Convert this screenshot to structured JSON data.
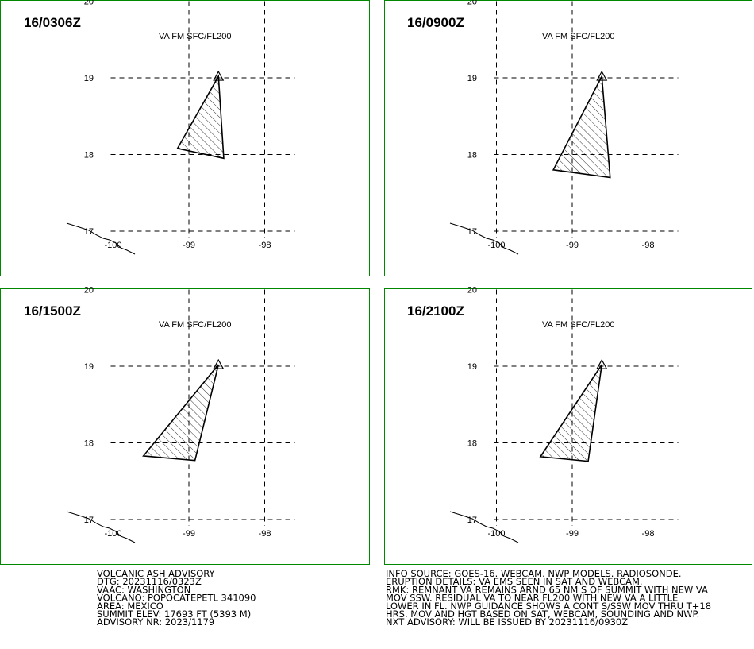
{
  "panels": [
    {
      "time": "16/0306Z",
      "level": "VA FM SFC/FL200",
      "lon": [
        -98.61,
        -99.15,
        -98.54
      ],
      "lat": [
        19.02,
        18.08,
        17.95
      ]
    },
    {
      "time": "16/0900Z",
      "level": "VA FM SFC/FL200",
      "lon": [
        -98.61,
        -99.25,
        -98.5
      ],
      "lat": [
        19.02,
        17.8,
        17.7
      ]
    },
    {
      "time": "16/1500Z",
      "level": "VA FM SFC/FL200",
      "lon": [
        -98.61,
        -99.6,
        -98.92
      ],
      "lat": [
        19.02,
        17.83,
        17.77
      ]
    },
    {
      "time": "16/2100Z",
      "level": "VA FM SFC/FL200",
      "lon": [
        -98.61,
        -99.42,
        -98.79
      ],
      "lat": [
        19.02,
        17.82,
        17.76
      ]
    }
  ],
  "lat_ticks": [
    17,
    18,
    19,
    20
  ],
  "lon_ticks": [
    -100,
    -99,
    -98
  ],
  "advisory_left": [
    "VOLCANIC ASH ADVISORY",
    "DTG: 20231116/0323Z",
    "VAAC: WASHINGTON",
    "VOLCANO: POPOCATEPETL 341090",
    "AREA: MEXICO",
    "SUMMIT ELEV: 17693 FT (5393 M)",
    "ADVISORY NR: 2023/1179"
  ],
  "advisory_right": [
    "INFO SOURCE: GOES-16. WEBCAM. NWP MODELS. RADIOSONDE.",
    "ERUPTION DETAILS: VA EMS SEEN IN SAT AND WEBCAM.",
    "RMK: REMNANT VA REMAINS ARND 65 NM S OF SUMMIT WITH NEW VA",
    "MOV SSW. RESIDUAL VA TO NEAR FL200 WITH NEW VA A LITTLE",
    "LOWER IN FL. NWP GUIDANCE SHOWS A CONT S/SSW MOV THRU T+18",
    "HRS. MOV AND HGT BASED ON SAT, WEBCAM, SOUNDING AND NWP.",
    "NXT ADVISORY: WILL BE ISSUED BY 20231116/0930Z"
  ]
}
